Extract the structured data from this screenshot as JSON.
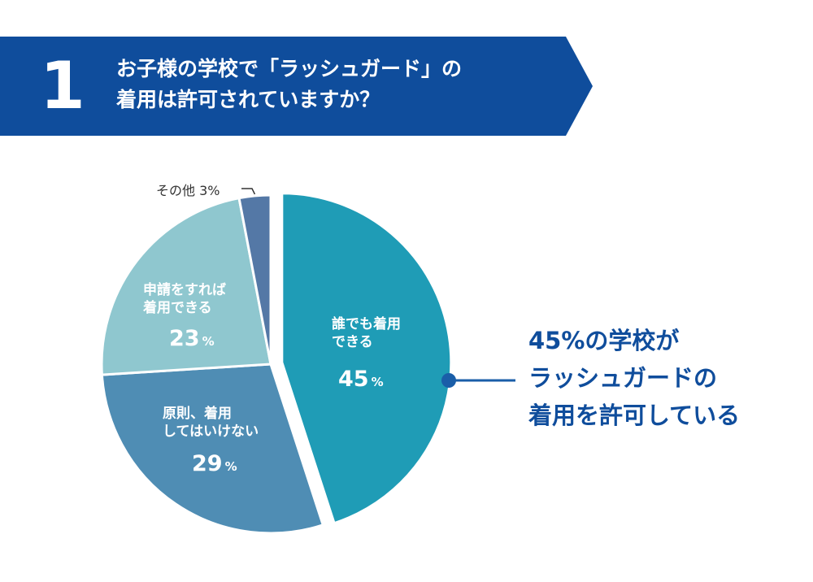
{
  "question": {
    "number": "1",
    "title_lines": [
      "お子様の学校で「ラッシュガード」の",
      "着用は許可されていますか？"
    ]
  },
  "colors": {
    "banner": "#0f4d9c",
    "callout_text": "#0f4d9c",
    "callout_line": "#1a5ea8"
  },
  "chart_data": {
    "type": "pie",
    "start": "12 o'clock, clockwise",
    "slices": [
      {
        "label_lines": [
          "誰でも着用",
          "できる"
        ],
        "value": 45,
        "unit": "%",
        "color": "#1f9cb6",
        "exploded": true
      },
      {
        "label_lines": [
          "原則、着用",
          "してはいけない"
        ],
        "value": 29,
        "unit": "%",
        "color": "#4f8db4"
      },
      {
        "label_lines": [
          "申請をすれば",
          "着用できる"
        ],
        "value": 23,
        "unit": "%",
        "color": "#8fc7cf"
      },
      {
        "label_lines": [
          "その他"
        ],
        "value": 3,
        "unit": "%",
        "color": "#5478a6",
        "external_label": "その他 3%"
      }
    ],
    "callout_lines": [
      "45%の学校が",
      "ラッシュガードの",
      "着用を許可している"
    ]
  }
}
